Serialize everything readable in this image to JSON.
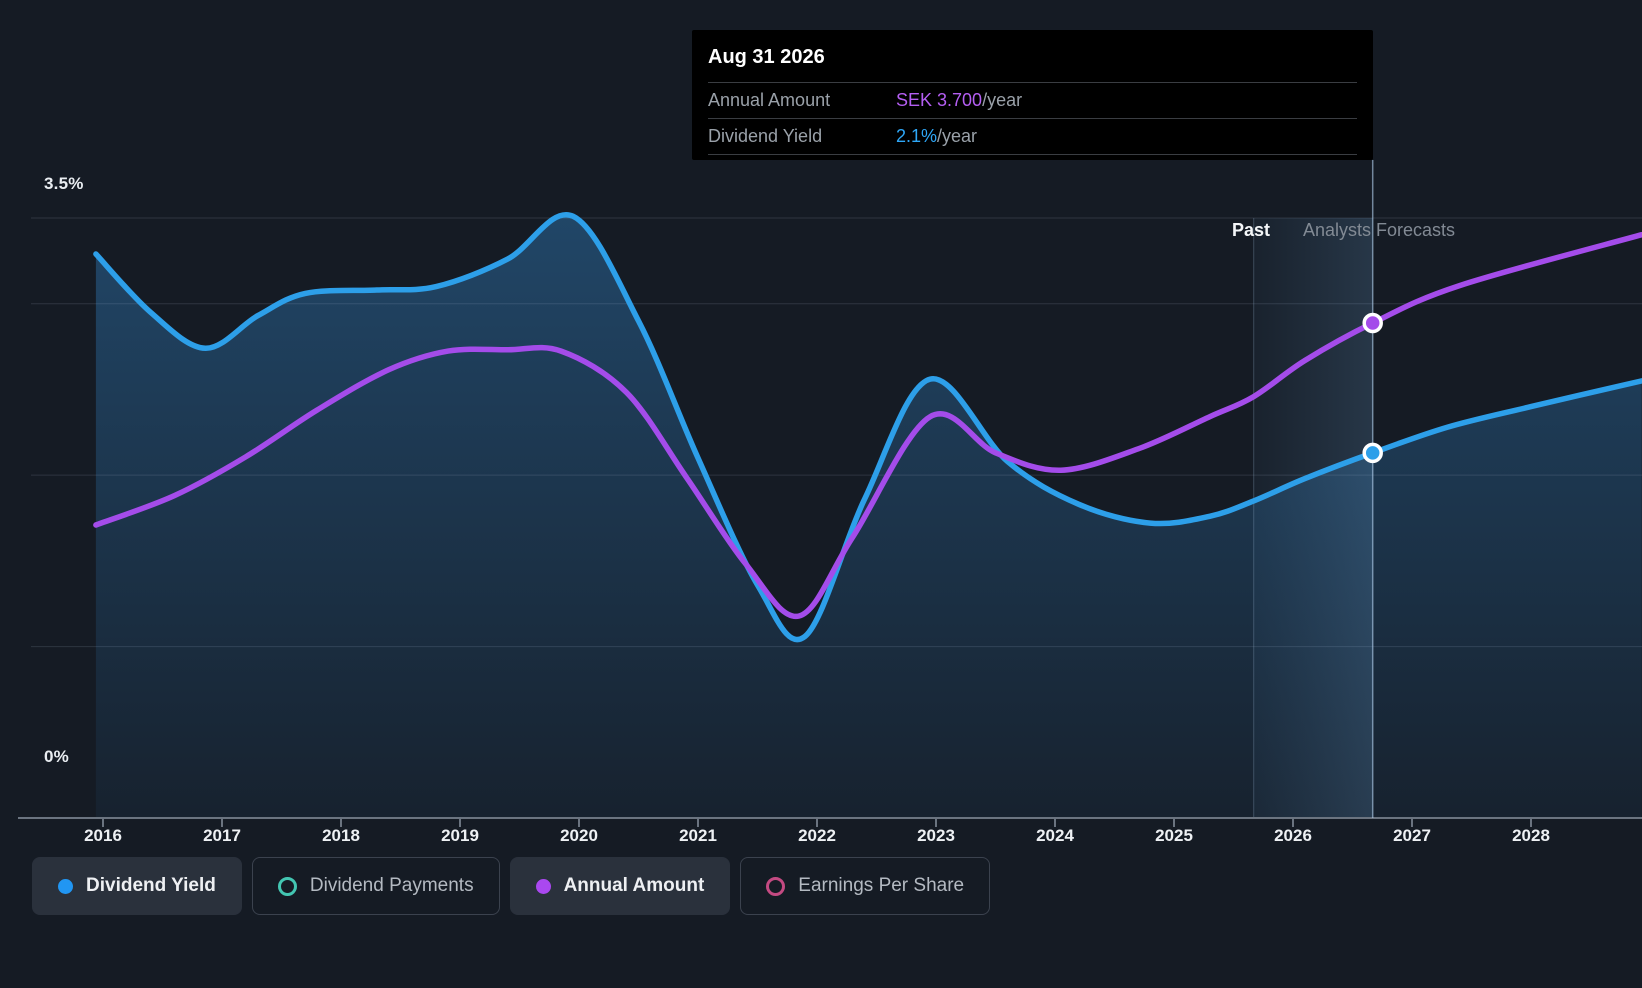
{
  "colors": {
    "background": "#151b24",
    "dividend_yield_line": "#2d9fe9",
    "annual_amount_line": "#a44cea",
    "tooltip_value_purple": "#b45ef2",
    "tooltip_value_blue": "#2ea7f7",
    "dividend_payments_accent": "#43c6b2",
    "earnings_per_share_accent": "#c44a82",
    "area_fill_base": "#348cd4"
  },
  "tooltip": {
    "date": "Aug 31 2026",
    "rows": [
      {
        "label": "Annual Amount",
        "value": "SEK 3.700",
        "suffix": "/year"
      },
      {
        "label": "Dividend Yield",
        "value": "2.1%",
        "suffix": "/year"
      }
    ]
  },
  "annotations": {
    "past_label": "Past",
    "forecast_label": "Analysts Forecasts"
  },
  "y_axis": {
    "top_label": "3.5%",
    "bottom_label": "0%"
  },
  "legend": {
    "items": [
      {
        "label": "Dividend Yield",
        "color": "#2196f3",
        "style": "filled",
        "active": true
      },
      {
        "label": "Dividend Payments",
        "color": "#43c6b2",
        "style": "outline",
        "active": false
      },
      {
        "label": "Annual Amount",
        "color": "#aa48f0",
        "style": "filled",
        "active": true
      },
      {
        "label": "Earnings Per Share",
        "color": "#c44a82",
        "style": "outline",
        "active": false
      }
    ]
  },
  "chart_data": {
    "type": "line",
    "title": "Dividend yield and annual dividend amount, past and analysts forecasts",
    "x_unit": "year",
    "x_ticks": [
      2016,
      2017,
      2018,
      2019,
      2020,
      2021,
      2022,
      2023,
      2024,
      2025,
      2026,
      2027,
      2028
    ],
    "xlim": [
      2015.13,
      2028.93
    ],
    "ylim_percent": [
      0,
      3.5
    ],
    "ylim_sek": [
      0,
      4.485
    ],
    "gridlines_percent": [
      3.5,
      3.0,
      2.0,
      1.0
    ],
    "past_boundary_x": 2025.67,
    "cursor_x": 2026.67,
    "legend_position": "bottom",
    "series": [
      {
        "name": "Dividend Yield",
        "axis": "percent",
        "color": "#2d9fe9",
        "fill_area": true,
        "points": [
          [
            2015.94,
            3.29
          ],
          [
            2016.4,
            2.95
          ],
          [
            2016.86,
            2.74
          ],
          [
            2017.3,
            2.93
          ],
          [
            2017.7,
            3.06
          ],
          [
            2018.3,
            3.08
          ],
          [
            2018.8,
            3.1
          ],
          [
            2019.4,
            3.26
          ],
          [
            2019.95,
            3.51
          ],
          [
            2020.5,
            2.9
          ],
          [
            2021.0,
            2.1
          ],
          [
            2021.5,
            1.36
          ],
          [
            2021.9,
            1.06
          ],
          [
            2022.4,
            1.86
          ],
          [
            2022.95,
            2.56
          ],
          [
            2023.6,
            2.08
          ],
          [
            2024.2,
            1.83
          ],
          [
            2024.8,
            1.72
          ],
          [
            2025.3,
            1.76
          ],
          [
            2025.67,
            1.85
          ],
          [
            2026.1,
            1.98
          ],
          [
            2026.67,
            2.13
          ],
          [
            2027.3,
            2.28
          ],
          [
            2028.0,
            2.4
          ],
          [
            2028.93,
            2.55
          ]
        ]
      },
      {
        "name": "Annual Amount",
        "axis": "sek",
        "color": "#a44cea",
        "fill_area": false,
        "points": [
          [
            2015.94,
            2.19
          ],
          [
            2016.6,
            2.41
          ],
          [
            2017.2,
            2.7
          ],
          [
            2017.8,
            3.05
          ],
          [
            2018.4,
            3.35
          ],
          [
            2018.9,
            3.49
          ],
          [
            2019.4,
            3.5
          ],
          [
            2019.85,
            3.49
          ],
          [
            2020.4,
            3.18
          ],
          [
            2020.9,
            2.55
          ],
          [
            2021.4,
            1.9
          ],
          [
            2021.85,
            1.51
          ],
          [
            2022.3,
            2.1
          ],
          [
            2022.95,
            3.0
          ],
          [
            2023.5,
            2.73
          ],
          [
            2024.05,
            2.6
          ],
          [
            2024.7,
            2.76
          ],
          [
            2025.3,
            3.0
          ],
          [
            2025.67,
            3.15
          ],
          [
            2026.1,
            3.42
          ],
          [
            2026.67,
            3.7
          ],
          [
            2027.4,
            3.98
          ],
          [
            2028.93,
            4.36
          ]
        ]
      }
    ],
    "markers": [
      {
        "series": "Annual Amount",
        "x": 2026.67,
        "value": 3.7,
        "axis": "sek"
      },
      {
        "series": "Dividend Yield",
        "x": 2026.67,
        "value": 2.13,
        "axis": "percent"
      }
    ]
  }
}
